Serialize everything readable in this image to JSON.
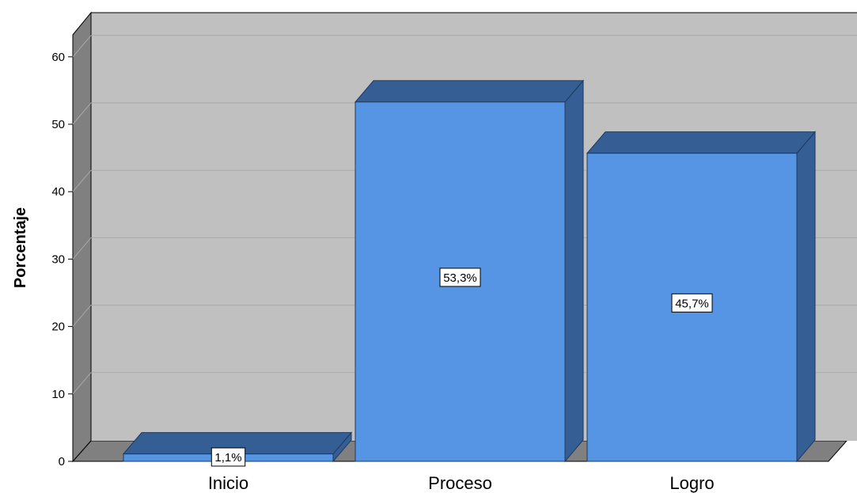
{
  "chart_data": {
    "type": "bar",
    "categories": [
      "Inicio",
      "Proceso",
      "Logro"
    ],
    "values": [
      1.1,
      53.3,
      45.7
    ],
    "data_labels": [
      "1,1%",
      "53,3%",
      "45,7%"
    ],
    "ylabel": "Porcentaje",
    "ylim": [
      0,
      60
    ],
    "yticks": [
      0,
      10,
      20,
      30,
      40,
      50,
      60
    ],
    "grid": true,
    "bar_color": "#5595e3",
    "bar_top_color": "#355f94",
    "bar_side_color": "#355f94",
    "wall_color": "#c0c0c0",
    "floor_color": "#808080"
  }
}
